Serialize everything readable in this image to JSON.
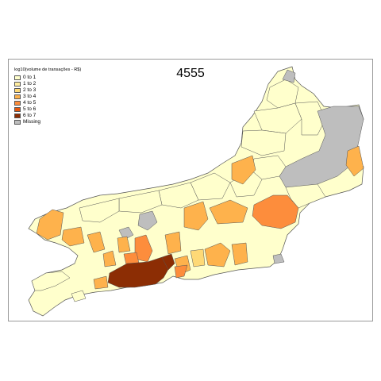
{
  "map": {
    "title": "4555",
    "legend_title": "log10(volume de transações - R$)",
    "colors": {
      "c0": "#ffffcc",
      "c1": "#ffeda0",
      "c2": "#fed976",
      "c3": "#feb24c",
      "c4": "#fd8d3c",
      "c5": "#e6550d",
      "c6": "#8c2d04",
      "missing": "#bebebe",
      "border": "#555555"
    },
    "legend": [
      {
        "label": "0 to 1",
        "color": "#ffffcc"
      },
      {
        "label": "1 to 2",
        "color": "#ffeda0"
      },
      {
        "label": "2 to 3",
        "color": "#fed976"
      },
      {
        "label": "3 to 4",
        "color": "#feb24c"
      },
      {
        "label": "4 to 5",
        "color": "#fd8d3c"
      },
      {
        "label": "5 to 6",
        "color": "#e6550d"
      },
      {
        "label": "6 to 7",
        "color": "#8c2d04"
      },
      {
        "label": "Missing",
        "color": "#bebebe"
      }
    ]
  }
}
